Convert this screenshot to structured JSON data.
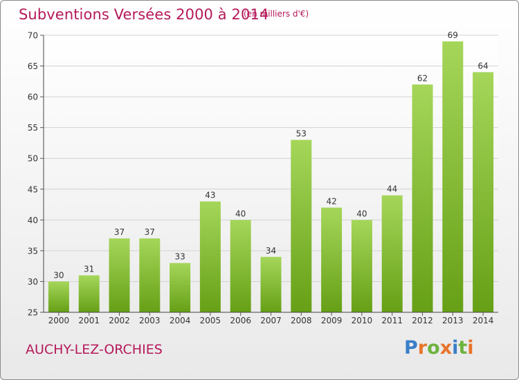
{
  "title": "Subventions Versées 2000 à 2014",
  "unit": "(en milliers d'€)",
  "town": "AUCHY-LEZ-ORCHIES",
  "logo": {
    "text": "Proxiti",
    "letter_colors": [
      "#3a7ec8",
      "#e8742a",
      "#6db33f",
      "#e8742a",
      "#3a7ec8",
      "#6db33f",
      "#e8742a"
    ]
  },
  "colors": {
    "title": "#b5195a",
    "bar_top": "#a5d65a",
    "bar_bottom": "#66a016"
  },
  "chart_data": {
    "type": "bar",
    "title": "Subventions Versées 2000 à 2014",
    "xlabel": "",
    "ylabel": "",
    "categories": [
      "2000",
      "2001",
      "2002",
      "2003",
      "2004",
      "2005",
      "2006",
      "2007",
      "2008",
      "2009",
      "2010",
      "2011",
      "2012",
      "2013",
      "2014"
    ],
    "values": [
      30,
      31,
      37,
      37,
      33,
      43,
      40,
      34,
      53,
      42,
      40,
      44,
      62,
      69,
      64
    ],
    "ylim": [
      25,
      70
    ],
    "yticks": [
      25,
      30,
      35,
      40,
      45,
      50,
      55,
      60,
      65,
      70
    ],
    "grid": true,
    "data_labels": true
  }
}
